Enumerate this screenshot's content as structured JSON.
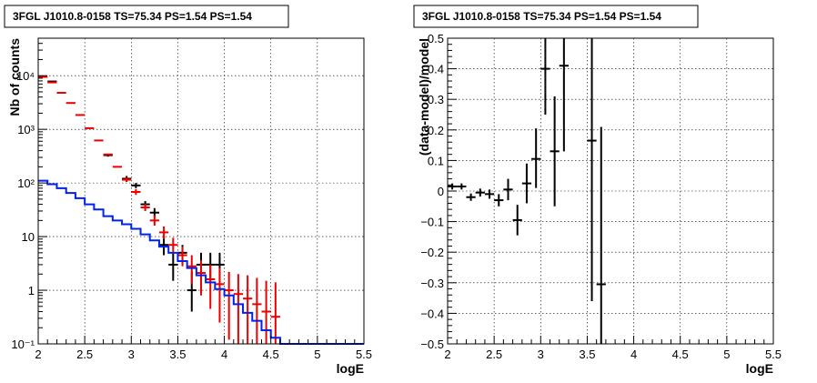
{
  "chart_data": [
    {
      "type": "scatter",
      "title": "3FGL J1010.8-0158 TS=75.34 PS=1.54 PS=1.54",
      "xlabel": "logE",
      "ylabel": "Nb of counts",
      "xscale": "linear",
      "yscale": "log",
      "xlim": [
        2,
        5.5
      ],
      "ylim": [
        0.1,
        50000
      ],
      "xticks": [
        "2",
        "2.5",
        "3",
        "3.5",
        "4",
        "4.5",
        "5",
        "5.5"
      ],
      "yticks": [
        {
          "value": 0.1,
          "label": "10⁻¹"
        },
        {
          "value": 1,
          "label": "1"
        },
        {
          "value": 10,
          "label": "10"
        },
        {
          "value": 100,
          "label": "10²"
        },
        {
          "value": 1000,
          "label": "10³"
        },
        {
          "value": 10000,
          "label": "10⁴"
        }
      ],
      "grid": true,
      "colors": {
        "data": "#000000",
        "model_total": "#ee0000",
        "model_source": "#0022ee"
      },
      "series": [
        {
          "role": "data",
          "points": [
            {
              "x": 2.15,
              "y": 7800,
              "lo": 7600,
              "hi": 8000
            },
            {
              "x": 2.75,
              "y": 330,
              "lo": 310,
              "hi": 350
            },
            {
              "x": 2.95,
              "y": 120,
              "lo": 105,
              "hi": 135
            },
            {
              "x": 3.05,
              "y": 90,
              "lo": 80,
              "hi": 100
            },
            {
              "x": 3.15,
              "y": 40,
              "lo": 34,
              "hi": 46
            },
            {
              "x": 3.25,
              "y": 28,
              "lo": 23,
              "hi": 34
            },
            {
              "x": 3.35,
              "y": 7,
              "lo": 4.5,
              "hi": 10
            },
            {
              "x": 3.45,
              "y": 3,
              "lo": 1.5,
              "hi": 5
            },
            {
              "x": 3.55,
              "y": 5,
              "lo": 3,
              "hi": 7
            },
            {
              "x": 3.65,
              "y": 1,
              "lo": 0.4,
              "hi": 2.3
            },
            {
              "x": 3.75,
              "y": 3,
              "lo": 1.5,
              "hi": 5
            },
            {
              "x": 3.85,
              "y": 3,
              "lo": 1.5,
              "hi": 5
            },
            {
              "x": 3.95,
              "y": 3,
              "lo": 1.5,
              "hi": 5
            }
          ]
        },
        {
          "role": "model_total",
          "points": [
            {
              "x": 2.05,
              "y": 9500,
              "lo": 9500,
              "hi": 9500
            },
            {
              "x": 2.15,
              "y": 7500,
              "lo": 7500,
              "hi": 7500
            },
            {
              "x": 2.25,
              "y": 4800,
              "lo": 4800,
              "hi": 4800
            },
            {
              "x": 2.35,
              "y": 3100,
              "lo": 3100,
              "hi": 3100
            },
            {
              "x": 2.45,
              "y": 1850,
              "lo": 1850,
              "hi": 1850
            },
            {
              "x": 2.55,
              "y": 1050,
              "lo": 1050,
              "hi": 1050
            },
            {
              "x": 2.65,
              "y": 620,
              "lo": 620,
              "hi": 620
            },
            {
              "x": 2.75,
              "y": 340,
              "lo": 340,
              "hi": 340
            },
            {
              "x": 2.85,
              "y": 200,
              "lo": 200,
              "hi": 200
            },
            {
              "x": 2.95,
              "y": 115,
              "lo": 105,
              "hi": 126
            },
            {
              "x": 3.05,
              "y": 68,
              "lo": 60,
              "hi": 77
            },
            {
              "x": 3.15,
              "y": 35,
              "lo": 30,
              "hi": 41
            },
            {
              "x": 3.25,
              "y": 20,
              "lo": 16,
              "hi": 25
            },
            {
              "x": 3.35,
              "y": 12,
              "lo": 9,
              "hi": 15.5
            },
            {
              "x": 3.45,
              "y": 7,
              "lo": 4.8,
              "hi": 9.5
            },
            {
              "x": 3.55,
              "y": 4.5,
              "lo": 2.8,
              "hi": 6.5
            },
            {
              "x": 3.65,
              "y": 2.8,
              "lo": 1.3,
              "hi": 4.5
            },
            {
              "x": 3.75,
              "y": 2.1,
              "lo": 0.8,
              "hi": 3.6
            },
            {
              "x": 3.85,
              "y": 1.6,
              "lo": 0.45,
              "hi": 3.0
            },
            {
              "x": 3.95,
              "y": 1.3,
              "lo": 0.25,
              "hi": 2.6
            },
            {
              "x": 4.05,
              "y": 1.0,
              "lo": 0.12,
              "hi": 2.2
            },
            {
              "x": 4.15,
              "y": 0.85,
              "lo": 0.1,
              "hi": 2.0
            },
            {
              "x": 4.25,
              "y": 0.7,
              "lo": 0.1,
              "hi": 1.9
            },
            {
              "x": 4.35,
              "y": 0.55,
              "lo": 0.1,
              "hi": 1.7
            },
            {
              "x": 4.45,
              "y": 0.4,
              "lo": 0.1,
              "hi": 1.5
            },
            {
              "x": 4.55,
              "y": 0.32,
              "lo": 0.1,
              "hi": 1.4
            }
          ]
        },
        {
          "role": "model_source",
          "style": "step",
          "edges": [
            2.0,
            2.1,
            2.2,
            2.3,
            2.4,
            2.5,
            2.6,
            2.7,
            2.8,
            2.9,
            3.0,
            3.1,
            3.2,
            3.3,
            3.4,
            3.5,
            3.6,
            3.7,
            3.8,
            3.9,
            4.0,
            4.1,
            4.2,
            4.3,
            4.4,
            4.5,
            4.6,
            5.5
          ],
          "values": [
            110,
            95,
            80,
            65,
            52,
            40,
            32,
            24,
            20,
            17,
            14,
            11,
            8.5,
            6.5,
            5,
            3.5,
            2.6,
            1.9,
            1.4,
            1.05,
            0.8,
            0.55,
            0.38,
            0.27,
            0.18,
            0.13,
            0.1
          ]
        }
      ]
    },
    {
      "type": "scatter",
      "title": "3FGL J1010.8-0158 TS=75.34 PS=1.54 PS=1.54",
      "xlabel": "logE",
      "ylabel": "(data-model)/model",
      "xscale": "linear",
      "yscale": "linear",
      "xlim": [
        2,
        5.5
      ],
      "ylim": [
        -0.5,
        0.5
      ],
      "xticks": [
        "2",
        "2.5",
        "3",
        "3.5",
        "4",
        "4.5",
        "5",
        "5.5"
      ],
      "yticks": [
        "−0.5",
        "−0.4",
        "−0.3",
        "−0.2",
        "−0.1",
        "0",
        "0.1",
        "0.2",
        "0.3",
        "0.4",
        "0.5"
      ],
      "grid": true,
      "colors": {
        "data": "#000000"
      },
      "series": [
        {
          "role": "residuals",
          "points": [
            {
              "x": 2.05,
              "y": 0.015,
              "lo": 0.005,
              "hi": 0.025
            },
            {
              "x": 2.15,
              "y": 0.015,
              "lo": 0.005,
              "hi": 0.025
            },
            {
              "x": 2.25,
              "y": -0.02,
              "lo": -0.032,
              "hi": -0.008
            },
            {
              "x": 2.35,
              "y": -0.005,
              "lo": -0.018,
              "hi": 0.008
            },
            {
              "x": 2.45,
              "y": -0.01,
              "lo": -0.025,
              "hi": 0.005
            },
            {
              "x": 2.55,
              "y": -0.03,
              "lo": -0.05,
              "hi": -0.01
            },
            {
              "x": 2.65,
              "y": 0.005,
              "lo": -0.03,
              "hi": 0.04
            },
            {
              "x": 2.75,
              "y": -0.095,
              "lo": -0.145,
              "hi": -0.045
            },
            {
              "x": 2.85,
              "y": 0.025,
              "lo": -0.04,
              "hi": 0.09
            },
            {
              "x": 2.95,
              "y": 0.105,
              "lo": 0.01,
              "hi": 0.205
            },
            {
              "x": 3.05,
              "y": 0.4,
              "lo": 0.25,
              "hi": 0.5
            },
            {
              "x": 3.15,
              "y": 0.13,
              "lo": -0.05,
              "hi": 0.31
            },
            {
              "x": 3.25,
              "y": 0.41,
              "lo": 0.13,
              "hi": 0.5
            },
            {
              "x": 3.55,
              "y": 0.165,
              "lo": -0.36,
              "hi": 0.5
            },
            {
              "x": 3.65,
              "y": -0.305,
              "lo": -0.5,
              "hi": 0.21
            }
          ]
        }
      ]
    }
  ]
}
